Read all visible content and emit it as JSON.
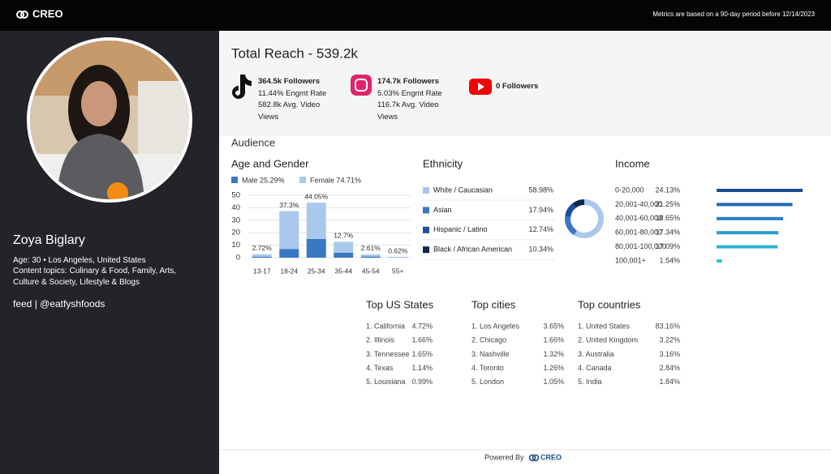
{
  "header": {
    "logo": "CREO",
    "note": "Metrics are based on a 90-day period before 12/14/2023"
  },
  "profile": {
    "name": "Zoya Biglary",
    "details": [
      "Age: 30 • Los Angeles, United States",
      "Content topics: Culinary & Food, Family, Arts, Culture & Society, Lifestyle & Blogs"
    ],
    "feed": "feed | @eatfyshfoods"
  },
  "reach": {
    "title": "Total Reach - 539.2k",
    "platforms": [
      {
        "lines": [
          "364.5k Followers",
          "11.44% Engmt Rate",
          "582.8k Avg. Video Views"
        ]
      },
      {
        "lines": [
          "174.7k Followers",
          "5.03% Engmt Rate",
          "116.7k Avg. Video Views"
        ]
      },
      {
        "lines": [
          "0 Followers"
        ]
      }
    ]
  },
  "audience": {
    "title": "Audience"
  },
  "chart_data": [
    {
      "type": "stacked-bar",
      "title": "Age and Gender",
      "categories": [
        "13-17",
        "18-24",
        "25-34",
        "35-44",
        "45-54",
        "55+"
      ],
      "series": [
        {
          "name": "Male 25.29%",
          "color": "#3a78c3",
          "values": [
            0.8,
            7,
            15,
            4,
            0.9,
            0.2
          ]
        },
        {
          "name": "Female 74.71%",
          "color": "#a9c8ec",
          "values": [
            1.92,
            30.3,
            29.05,
            8.7,
            1.71,
            0.42
          ]
        }
      ],
      "totals": [
        2.72,
        37.3,
        44.05,
        12.7,
        2.61,
        0.62
      ],
      "total_labels": [
        "2.72%",
        "37.3%",
        "44.05%",
        "12.7%",
        "2.61%",
        "0.62%"
      ],
      "ylim": [
        0,
        50
      ],
      "yticks": [
        0,
        10,
        20,
        30,
        40,
        50
      ],
      "grid": true
    },
    {
      "type": "donut",
      "title": "Ethnicity",
      "categories": [
        "White / Caucasian",
        "Asian",
        "Hispanic / Latino",
        "Black / African American"
      ],
      "values": [
        58.98,
        17.94,
        12.74,
        10.34
      ],
      "value_labels": [
        "58.98%",
        "17.94%",
        "12.74%",
        "10.34%"
      ],
      "colors": [
        "#a9c8ec",
        "#3a78c3",
        "#1d4f9c",
        "#0e2850"
      ]
    },
    {
      "type": "hbar",
      "title": "Income",
      "categories": [
        "0-20,000",
        "20,001-40,000",
        "40,001-60,000",
        "60,001-80,000",
        "80,001-100,000",
        "100,001+"
      ],
      "values": [
        24.13,
        21.25,
        18.65,
        17.34,
        17.09,
        1.54
      ],
      "value_labels": [
        "24.13%",
        "21.25%",
        "18.65%",
        "17.34%",
        "17.09%",
        "1.54%"
      ],
      "colors": [
        "#1d4f8f",
        "#2267b0",
        "#2680c4",
        "#2a9bd0",
        "#2fb0d8",
        "#37c3dd"
      ]
    }
  ],
  "top_lists": [
    {
      "title": "Top US States",
      "rows": [
        [
          "1. California",
          "4.72%"
        ],
        [
          "2. Illinois",
          "1.66%"
        ],
        [
          "3. Tennessee",
          "1.65%"
        ],
        [
          "4. Texas",
          "1.14%"
        ],
        [
          "5. Louisiana",
          "0.99%"
        ]
      ]
    },
    {
      "title": "Top cities",
      "rows": [
        [
          "1. Los Angeles",
          "3.65%"
        ],
        [
          "2. Chicago",
          "1.66%"
        ],
        [
          "3. Nashville",
          "1.32%"
        ],
        [
          "4. Toronto",
          "1.26%"
        ],
        [
          "5. London",
          "1.05%"
        ]
      ]
    },
    {
      "title": "Top countries",
      "rows": [
        [
          "1. United States",
          "83.16%"
        ],
        [
          "2. United Kingdom",
          "3.22%"
        ],
        [
          "3. Australia",
          "3.16%"
        ],
        [
          "4. Canada",
          "2.84%"
        ],
        [
          "5. India",
          "1.84%"
        ]
      ]
    }
  ],
  "footer": {
    "text": "Powered By",
    "logo": "CREO"
  }
}
